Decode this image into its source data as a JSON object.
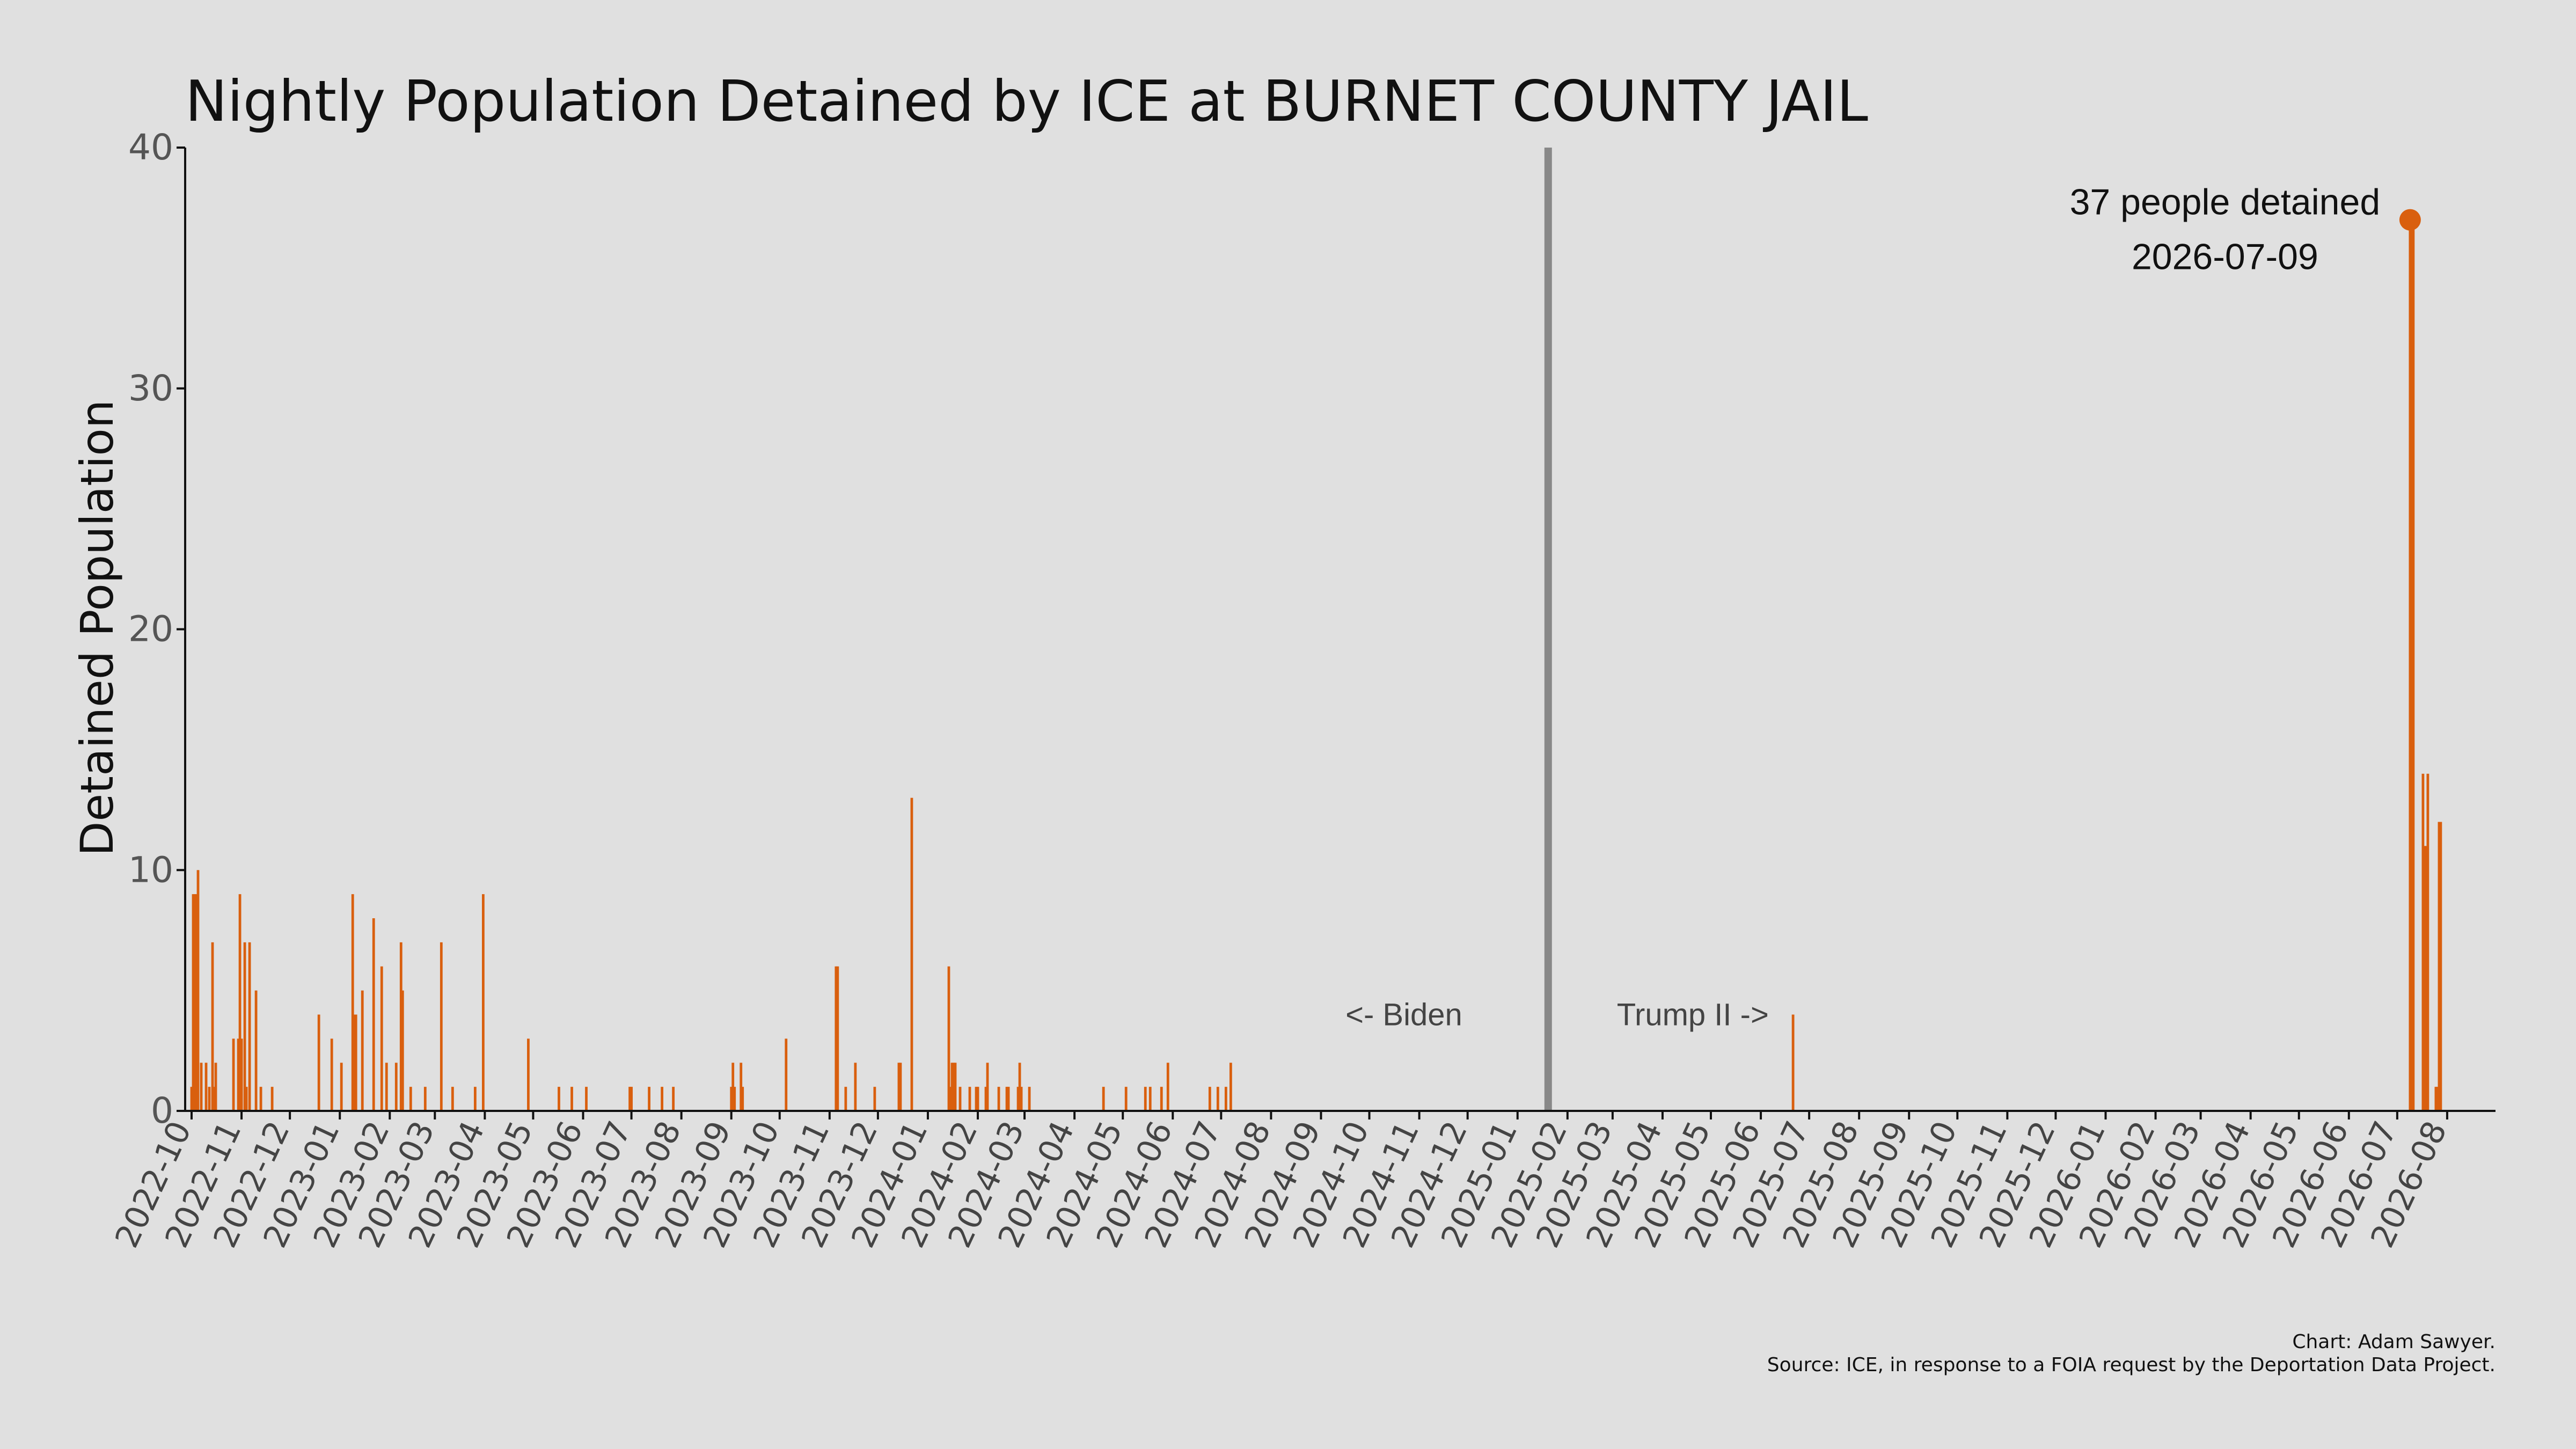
{
  "chart_data": {
    "type": "bar",
    "title": "Nightly Population Detained by ICE at BURNET COUNTY JAIL",
    "ylabel": "Detained Population",
    "xlabel": "",
    "ylim": [
      0,
      40
    ],
    "xlim": [
      "2022-09-27",
      "2026-08-31"
    ],
    "yticks": [
      "0",
      "10",
      "20",
      "30",
      "40"
    ],
    "xticks": [
      "2022-10",
      "2022-11",
      "2022-12",
      "2023-01",
      "2023-02",
      "2023-03",
      "2023-04",
      "2023-05",
      "2023-06",
      "2023-07",
      "2023-08",
      "2023-09",
      "2023-10",
      "2023-11",
      "2023-12",
      "2024-01",
      "2024-02",
      "2024-03",
      "2024-04",
      "2024-05",
      "2024-06",
      "2024-07",
      "2024-08",
      "2024-09",
      "2024-10",
      "2024-11",
      "2024-12",
      "2025-01",
      "2025-02",
      "2025-03",
      "2025-04",
      "2025-05",
      "2025-06",
      "2025-07",
      "2025-08",
      "2025-09",
      "2025-10",
      "2025-11",
      "2025-12",
      "2026-01",
      "2026-02",
      "2026-03",
      "2026-04",
      "2026-05",
      "2026-06",
      "2026-07",
      "2026-08"
    ],
    "grid": false,
    "bar_color": "#d95f0e",
    "divider_color": "#888888",
    "divider_date": "2025-01-20",
    "era_labels": {
      "left": "<- Biden",
      "right": "Trump II ->"
    },
    "annotation": {
      "line1": "37 people detained",
      "line2": "2026-07-09",
      "x": "2026-07-09",
      "y": 37
    },
    "credit": "Chart: Adam Sawyer.",
    "source": "Source: ICE, in response to a FOIA request by the Deportation Data Project.",
    "points": [
      [
        "2022-10-01",
        1
      ],
      [
        "2022-10-02",
        9
      ],
      [
        "2022-10-03",
        9
      ],
      [
        "2022-10-04",
        9
      ],
      [
        "2022-10-05",
        10
      ],
      [
        "2022-10-07",
        2
      ],
      [
        "2022-10-10",
        2
      ],
      [
        "2022-10-12",
        1
      ],
      [
        "2022-10-14",
        7
      ],
      [
        "2022-10-15",
        1
      ],
      [
        "2022-10-16",
        2
      ],
      [
        "2022-10-27",
        3
      ],
      [
        "2022-10-30",
        3
      ],
      [
        "2022-10-31",
        9
      ],
      [
        "2022-11-01",
        3
      ],
      [
        "2022-11-03",
        7
      ],
      [
        "2022-11-04",
        1
      ],
      [
        "2022-11-06",
        7
      ],
      [
        "2022-11-10",
        5
      ],
      [
        "2022-11-13",
        1
      ],
      [
        "2022-11-20",
        1
      ],
      [
        "2022-12-19",
        4
      ],
      [
        "2022-12-27",
        3
      ],
      [
        "2023-01-02",
        2
      ],
      [
        "2023-01-09",
        9
      ],
      [
        "2023-01-10",
        4
      ],
      [
        "2023-01-11",
        4
      ],
      [
        "2023-01-15",
        5
      ],
      [
        "2023-01-22",
        8
      ],
      [
        "2023-01-27",
        6
      ],
      [
        "2023-01-30",
        2
      ],
      [
        "2023-02-05",
        2
      ],
      [
        "2023-02-08",
        7
      ],
      [
        "2023-02-09",
        5
      ],
      [
        "2023-02-14",
        1
      ],
      [
        "2023-02-23",
        1
      ],
      [
        "2023-03-05",
        7
      ],
      [
        "2023-03-12",
        1
      ],
      [
        "2023-03-26",
        1
      ],
      [
        "2023-03-31",
        9
      ],
      [
        "2023-04-28",
        3
      ],
      [
        "2023-05-17",
        1
      ],
      [
        "2023-05-25",
        1
      ],
      [
        "2023-06-03",
        1
      ],
      [
        "2023-06-30",
        1
      ],
      [
        "2023-07-01",
        1
      ],
      [
        "2023-07-12",
        1
      ],
      [
        "2023-07-20",
        1
      ],
      [
        "2023-07-27",
        1
      ],
      [
        "2023-09-01",
        1
      ],
      [
        "2023-09-02",
        2
      ],
      [
        "2023-09-03",
        1
      ],
      [
        "2023-09-07",
        2
      ],
      [
        "2023-09-08",
        1
      ],
      [
        "2023-10-05",
        3
      ],
      [
        "2023-11-05",
        6
      ],
      [
        "2023-11-06",
        6
      ],
      [
        "2023-11-11",
        1
      ],
      [
        "2023-11-17",
        2
      ],
      [
        "2023-11-29",
        1
      ],
      [
        "2023-12-14",
        2
      ],
      [
        "2023-12-15",
        2
      ],
      [
        "2023-12-22",
        13
      ],
      [
        "2024-01-14",
        6
      ],
      [
        "2024-01-15",
        1
      ],
      [
        "2024-01-16",
        2
      ],
      [
        "2024-01-17",
        2
      ],
      [
        "2024-01-18",
        2
      ],
      [
        "2024-01-21",
        1
      ],
      [
        "2024-01-27",
        1
      ],
      [
        "2024-01-31",
        1
      ],
      [
        "2024-02-01",
        1
      ],
      [
        "2024-02-06",
        1
      ],
      [
        "2024-02-07",
        2
      ],
      [
        "2024-02-14",
        1
      ],
      [
        "2024-02-19",
        1
      ],
      [
        "2024-02-20",
        1
      ],
      [
        "2024-02-26",
        1
      ],
      [
        "2024-02-27",
        2
      ],
      [
        "2024-02-28",
        1
      ],
      [
        "2024-03-04",
        1
      ],
      [
        "2024-04-19",
        1
      ],
      [
        "2024-05-03",
        1
      ],
      [
        "2024-05-15",
        1
      ],
      [
        "2024-05-18",
        1
      ],
      [
        "2024-05-25",
        1
      ],
      [
        "2024-05-29",
        2
      ],
      [
        "2024-06-24",
        1
      ],
      [
        "2024-06-29",
        1
      ],
      [
        "2024-07-04",
        1
      ],
      [
        "2024-07-07",
        2
      ],
      [
        "2025-06-21",
        4
      ],
      [
        "2026-07-09",
        37
      ],
      [
        "2026-07-10",
        37
      ],
      [
        "2026-07-11",
        37
      ],
      [
        "2026-07-17",
        14
      ],
      [
        "2026-07-18",
        11
      ],
      [
        "2026-07-19",
        11
      ],
      [
        "2026-07-20",
        14
      ],
      [
        "2026-07-25",
        1
      ],
      [
        "2026-07-26",
        1
      ],
      [
        "2026-07-27",
        12
      ],
      [
        "2026-07-28",
        12
      ]
    ]
  }
}
